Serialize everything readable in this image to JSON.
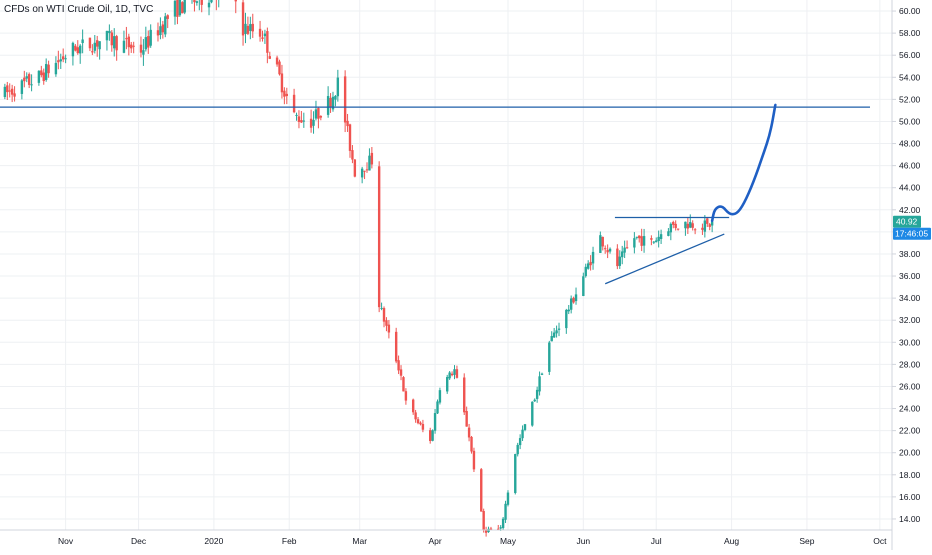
{
  "header": {
    "title": "CFDs on WTI Crude Oil, 1D, TVC"
  },
  "price_badge": {
    "value": "40.92",
    "countdown": "17:46:05",
    "color": "#26a69a",
    "countdown_color": "#1e88e5"
  },
  "colors": {
    "up": "#26a69a",
    "down": "#ef5350",
    "drawing": "#1e5fa8",
    "grid": "#eef0f3",
    "axis_border": "#d1d4dc"
  },
  "chart_data": {
    "type": "candlestick",
    "title": "CFDs on WTI Crude Oil, 1D, TVC",
    "x_tick_labels": [
      "Nov",
      "Dec",
      "2020",
      "Feb",
      "Mar",
      "Apr",
      "May",
      "Jun",
      "Jul",
      "Aug",
      "Sep",
      "Oct"
    ],
    "x_tick_dates": [
      "2019-11-01",
      "2019-12-01",
      "2020-01-01",
      "2020-02-01",
      "2020-03-01",
      "2020-04-01",
      "2020-05-01",
      "2020-06-01",
      "2020-07-01",
      "2020-08-01",
      "2020-09-01",
      "2020-10-01"
    ],
    "y_tick_labels": [
      "14.00",
      "16.00",
      "18.00",
      "20.00",
      "22.00",
      "24.00",
      "26.00",
      "28.00",
      "30.00",
      "32.00",
      "34.00",
      "36.00",
      "38.00",
      "40.00",
      "42.00",
      "44.00",
      "46.00",
      "48.00",
      "50.00",
      "52.00",
      "54.00",
      "56.00",
      "58.00",
      "60.00"
    ],
    "ylim": [
      13,
      61
    ],
    "xlim": [
      "2019-10-05",
      "2020-10-06"
    ],
    "grid": true,
    "price_scale": "right",
    "last_price": 40.92,
    "anchors": [
      [
        "2019-10-07",
        52.5
      ],
      [
        "2019-10-21",
        54.0
      ],
      [
        "2019-11-04",
        56.5
      ],
      [
        "2019-11-18",
        57.5
      ],
      [
        "2019-12-02",
        56.5
      ],
      [
        "2019-12-16",
        60.2
      ],
      [
        "2019-12-30",
        61.5
      ],
      [
        "2020-01-08",
        62.5
      ],
      [
        "2020-01-13",
        58.5
      ],
      [
        "2020-01-21",
        58.0
      ],
      [
        "2020-02-03",
        50.5
      ],
      [
        "2020-02-10",
        50.0
      ],
      [
        "2020-02-18",
        52.0
      ],
      [
        "2020-02-21",
        53.5
      ],
      [
        "2020-02-28",
        45.5
      ],
      [
        "2020-03-06",
        46.5
      ],
      [
        "2020-03-09",
        33.5
      ],
      [
        "2020-03-18",
        27.0
      ],
      [
        "2020-03-20",
        24.5
      ],
      [
        "2020-03-30",
        21.0
      ],
      [
        "2020-04-03",
        26.0
      ],
      [
        "2020-04-09",
        27.5
      ],
      [
        "2020-04-15",
        21.5
      ],
      [
        "2020-04-21",
        13.0
      ],
      [
        "2020-04-28",
        13.0
      ],
      [
        "2020-05-04",
        20.0
      ],
      [
        "2020-05-12",
        25.0
      ],
      [
        "2020-05-18",
        30.0
      ],
      [
        "2020-05-27",
        33.5
      ],
      [
        "2020-06-03",
        37.0
      ],
      [
        "2020-06-08",
        39.5
      ],
      [
        "2020-06-15",
        37.0
      ],
      [
        "2020-06-22",
        39.5
      ],
      [
        "2020-06-29",
        39.0
      ],
      [
        "2020-07-06",
        40.5
      ],
      [
        "2020-07-15",
        40.8
      ],
      [
        "2020-07-22",
        40.5
      ],
      [
        "2020-07-24",
        40.92
      ]
    ],
    "drawings": [
      {
        "type": "horizontal_line",
        "price": 51.3
      },
      {
        "type": "segment",
        "from": [
          "2020-06-14",
          41.3
        ],
        "to": [
          "2020-07-31",
          41.3
        ]
      },
      {
        "type": "segment",
        "from": [
          "2020-06-10",
          35.3
        ],
        "to": [
          "2020-07-29",
          39.8
        ]
      },
      {
        "type": "freehand",
        "points": [
          [
            "2020-07-24",
            41.0
          ],
          [
            "2020-07-25",
            42.1
          ],
          [
            "2020-07-28",
            42.4
          ],
          [
            "2020-07-31",
            41.6
          ],
          [
            "2020-08-03",
            41.6
          ],
          [
            "2020-08-06",
            42.5
          ],
          [
            "2020-08-10",
            44.5
          ],
          [
            "2020-08-14",
            47.0
          ],
          [
            "2020-08-17",
            49.0
          ],
          [
            "2020-08-19",
            51.5
          ]
        ]
      }
    ]
  }
}
